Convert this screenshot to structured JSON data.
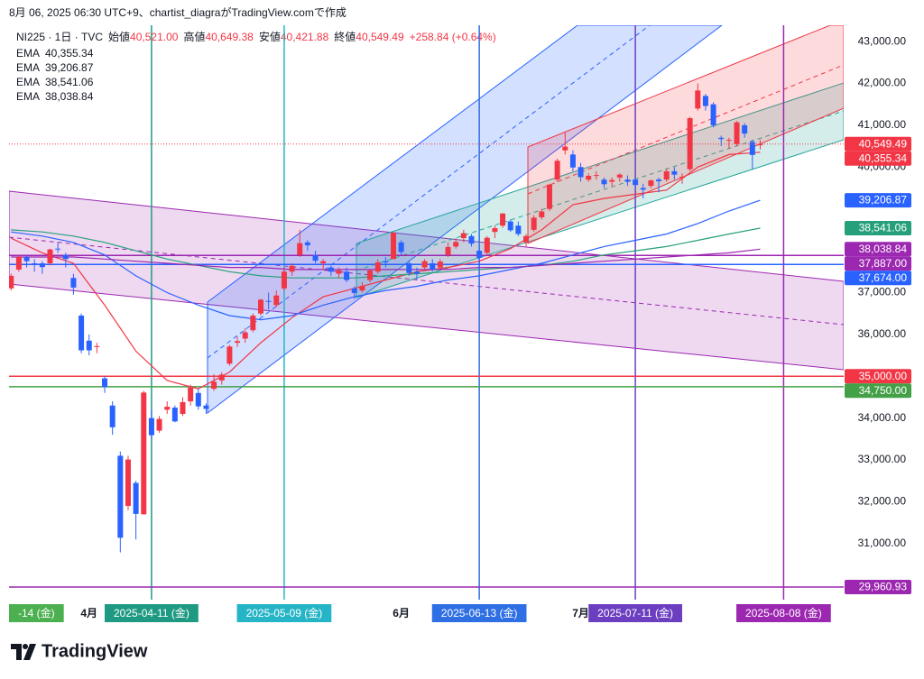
{
  "header": {
    "title": "8月 06, 2025 06:30 UTC+9、chartist_diagraがTradingView.comで作成"
  },
  "legend": {
    "symbol": "NI225 · 1日 · TVC",
    "items": [
      {
        "label": "始値",
        "value": "40,521.00"
      },
      {
        "label": "高値",
        "value": "40,649.38"
      },
      {
        "label": "安値",
        "value": "40,421.88"
      },
      {
        "label": "終値",
        "value": "40,549.49"
      }
    ],
    "change": "+258.84 (+0.64%)"
  },
  "chart_data": {
    "type": "candlestick",
    "categories": [
      "-14 (金)",
      null,
      null,
      null,
      null,
      null,
      null,
      null,
      null,
      null,
      null,
      "4月",
      null,
      null,
      null,
      null,
      null,
      null,
      null,
      "2025-04-11 (金)",
      null,
      null,
      null,
      null,
      null,
      null,
      null,
      null,
      null,
      null,
      null,
      null,
      null,
      null,
      null,
      null,
      "2025-05-09 (金)",
      null,
      null,
      null,
      null,
      null,
      null,
      null,
      null,
      null,
      null,
      null,
      null,
      null,
      null,
      "6月",
      null,
      null,
      null,
      null,
      null,
      null,
      null,
      null,
      null,
      "2025-06-13 (金)",
      null,
      null,
      null,
      null,
      null,
      null,
      null,
      null,
      null,
      null,
      null,
      null,
      "7月",
      null,
      null,
      null,
      null,
      null,
      null,
      "2025-07-11 (金)",
      null,
      null,
      null,
      null,
      null,
      null,
      null,
      null,
      null,
      null,
      null,
      null,
      null,
      null,
      null,
      null,
      null,
      null,
      "2025-08-08 (金)"
    ],
    "open": [
      null,
      37100,
      37550,
      37850,
      37700,
      37700,
      37700,
      38050,
      37900,
      37350,
      36450,
      35850,
      35700,
      34950,
      34300,
      33100,
      31900,
      32450,
      31700,
      34000,
      33700,
      34200,
      34250,
      34100,
      34400,
      34600,
      34300,
      34700,
      34900,
      35300,
      35800,
      35900,
      36100,
      36500,
      36800,
      36700,
      37100,
      37500,
      37900,
      38200,
      37900,
      37700,
      37600,
      37450,
      37500,
      37100,
      37050,
      37300,
      37500,
      37750,
      37800,
      38200,
      37700,
      37500,
      37600,
      37700,
      37600,
      37900,
      38100,
      38300,
      38350,
      38000,
      37950,
      38450,
      38600,
      38700,
      38600,
      38200,
      38500,
      38800,
      39000,
      39700,
      40400,
      40300,
      40000,
      39700,
      39800,
      39700,
      39650,
      39750,
      39700,
      39700,
      39500,
      39550,
      39700,
      39700,
      39900,
      39750,
      39950,
      41400,
      41700,
      41500,
      40700,
      40650,
      40550,
      41000,
      40600,
      40521,
      null,
      null,
      null
    ],
    "high": [
      null,
      37450,
      37900,
      37900,
      37800,
      37750,
      38050,
      38200,
      37950,
      37450,
      36500,
      36000,
      35800,
      35000,
      34400,
      33200,
      33100,
      32500,
      34650,
      34200,
      34050,
      34400,
      34300,
      34500,
      34800,
      34700,
      34350,
      35050,
      35100,
      35750,
      35950,
      36150,
      36500,
      36850,
      37000,
      37050,
      37600,
      37700,
      38500,
      38250,
      38000,
      37800,
      37650,
      37600,
      37600,
      37150,
      37250,
      37550,
      37800,
      37850,
      38450,
      38250,
      37750,
      37600,
      37800,
      37800,
      37800,
      38200,
      38300,
      38500,
      38400,
      38050,
      38350,
      38600,
      38900,
      38750,
      38700,
      38400,
      38850,
      39000,
      39600,
      40200,
      40850,
      40400,
      40100,
      39850,
      39900,
      39750,
      39750,
      39850,
      39800,
      39750,
      39600,
      39700,
      39750,
      39950,
      40000,
      39850,
      41200,
      42000,
      41750,
      41550,
      40750,
      40700,
      41100,
      41050,
      40650,
      40649.38,
      null,
      null,
      null
    ],
    "low": [
      null,
      37050,
      37500,
      37600,
      37500,
      37450,
      37650,
      37950,
      37600,
      36950,
      35550,
      35500,
      35550,
      34600,
      33600,
      30790,
      31800,
      31100,
      31700,
      33500,
      33650,
      34100,
      33900,
      34050,
      34300,
      34200,
      34100,
      34650,
      34800,
      35250,
      35700,
      35800,
      36050,
      36450,
      36600,
      36650,
      37050,
      37400,
      37850,
      38000,
      37700,
      37550,
      37400,
      37350,
      37250,
      36850,
      37000,
      37250,
      37450,
      37600,
      37800,
      37900,
      37400,
      37300,
      37550,
      37500,
      37550,
      37850,
      38050,
      38200,
      38100,
      37550,
      37900,
      38300,
      38550,
      38450,
      38350,
      38100,
      38450,
      38750,
      38950,
      39650,
      40300,
      39900,
      39650,
      39650,
      39700,
      39500,
      39550,
      39650,
      39550,
      39450,
      39250,
      39500,
      39400,
      39650,
      39700,
      39600,
      39900,
      41350,
      41350,
      40950,
      40500,
      40450,
      40500,
      40700,
      39950,
      40421.88,
      null,
      null,
      null
    ],
    "close": [
      null,
      37400,
      37850,
      37750,
      37680,
      37610,
      38030,
      38030,
      37800,
      37120,
      35620,
      35620,
      35720,
      34740,
      33780,
      31140,
      33010,
      31710,
      34610,
      33590,
      33980,
      34270,
      33920,
      34380,
      34730,
      34280,
      34220,
      34870,
      35040,
      35710,
      35840,
      36050,
      36450,
      36830,
      36780,
      36930,
      37500,
      37640,
      38180,
      38130,
      37760,
      37750,
      37500,
      37530,
      37300,
      36990,
      37160,
      37530,
      37720,
      37720,
      38430,
      37970,
      37470,
      37450,
      37750,
      37550,
      37740,
      38090,
      38210,
      38420,
      38170,
      37830,
      38310,
      38540,
      38890,
      38490,
      38400,
      38350,
      38790,
      38940,
      39580,
      40150,
      40490,
      39990,
      39760,
      39790,
      39810,
      39590,
      39690,
      39820,
      39650,
      39570,
      39460,
      39680,
      39660,
      39900,
      39820,
      39770,
      41170,
      41830,
      41460,
      41000,
      40670,
      40650,
      41070,
      40800,
      40290,
      40549.49,
      null,
      null,
      null
    ],
    "close_label": "40,549.49",
    "up_color": "#f23645",
    "down_color": "#2962ff",
    "price_line_color": "#f23645",
    "xlim": [
      0.74,
      107.7
    ],
    "ylim": [
      29660,
      43390
    ],
    "yticks": [
      {
        "value": 43000,
        "label": "43,000.00"
      },
      {
        "value": 42000,
        "label": "42,000.00"
      },
      {
        "value": 41000,
        "label": "41,000.00"
      },
      {
        "value": 40000,
        "label": "40,000.00"
      },
      {
        "value": 37000,
        "label": "37,000.00"
      },
      {
        "value": 36000,
        "label": "36,000.00"
      },
      {
        "value": 34000,
        "label": "34,000.00"
      },
      {
        "value": 33000,
        "label": "33,000.00"
      },
      {
        "value": 32000,
        "label": "32,000.00"
      },
      {
        "value": 31000,
        "label": "31,000.00"
      }
    ],
    "grid": false,
    "series": [
      {
        "name": "EMA",
        "color": "#f23645",
        "value_label": "40,355.34",
        "x": [
          1,
          5,
          9,
          13,
          17,
          21,
          25,
          29,
          33,
          37,
          41,
          45,
          49,
          53,
          57,
          61,
          65,
          69,
          73,
          77,
          81,
          85,
          89,
          93,
          97
        ],
        "values": [
          38300,
          37950,
          37700,
          36700,
          35600,
          34900,
          34700,
          35100,
          35800,
          36400,
          36900,
          37100,
          37300,
          37500,
          37600,
          37750,
          38050,
          38500,
          39100,
          39250,
          39350,
          39450,
          40000,
          40300,
          40355.34
        ]
      },
      {
        "name": "EMA",
        "color": "#2962ff",
        "value_label": "39,206.87",
        "x": [
          1,
          5,
          9,
          13,
          17,
          21,
          25,
          29,
          33,
          37,
          41,
          45,
          49,
          53,
          57,
          61,
          65,
          69,
          73,
          77,
          81,
          85,
          89,
          93,
          97
        ],
        "values": [
          38450,
          38350,
          38200,
          37900,
          37400,
          37000,
          36700,
          36450,
          36350,
          36450,
          36700,
          36900,
          37050,
          37150,
          37300,
          37400,
          37550,
          37700,
          37900,
          38100,
          38250,
          38400,
          38650,
          38950,
          39206.87
        ]
      },
      {
        "name": "EMA",
        "color": "#26a07a",
        "value_label": "38,541.06",
        "x": [
          1,
          5,
          9,
          13,
          17,
          21,
          25,
          29,
          33,
          37,
          41,
          45,
          49,
          53,
          57,
          61,
          65,
          69,
          73,
          77,
          81,
          85,
          89,
          93,
          97
        ],
        "values": [
          38500,
          38450,
          38350,
          38200,
          38000,
          37800,
          37650,
          37500,
          37400,
          37350,
          37350,
          37350,
          37400,
          37450,
          37500,
          37550,
          37600,
          37650,
          37750,
          37900,
          38000,
          38100,
          38250,
          38400,
          38541.06
        ]
      },
      {
        "name": "EMA",
        "color": "#9c27b0",
        "value_label": "38,038.84",
        "x": [
          1,
          5,
          9,
          13,
          17,
          21,
          25,
          29,
          33,
          37,
          41,
          45,
          49,
          53,
          57,
          61,
          65,
          69,
          73,
          77,
          81,
          85,
          89,
          93,
          97
        ],
        "values": [
          37850,
          37850,
          37850,
          37800,
          37750,
          37700,
          37650,
          37600,
          37600,
          37550,
          37550,
          37550,
          37550,
          37550,
          37550,
          37600,
          37600,
          37650,
          37700,
          37750,
          37800,
          37850,
          37900,
          37950,
          38038.84
        ]
      }
    ],
    "horizontal_lines": [
      {
        "value": 37887,
        "label": "37,887.00",
        "color": "#9c27b0"
      },
      {
        "value": 37674,
        "label": "37,674.00",
        "color": "#2962ff"
      },
      {
        "value": 35000,
        "label": "35,000.00",
        "color": "#f23645"
      },
      {
        "value": 34750,
        "label": "34,750.00",
        "color": "#43a047"
      },
      {
        "value": 29960.93,
        "label": "29,960.93",
        "color": "#9c27b0"
      }
    ],
    "vertical_lines": [
      {
        "x": 0,
        "color": "#4caf50"
      },
      {
        "x": 19,
        "color": "#1f9a82"
      },
      {
        "x": 36,
        "color": "#26b5c6"
      },
      {
        "x": 61,
        "color": "#2f6fe4"
      },
      {
        "x": 81,
        "color": "#6b3fc0"
      },
      {
        "x": 100,
        "color": "#9c27b0"
      }
    ]
  },
  "footer": {
    "brand": "TradingView"
  }
}
